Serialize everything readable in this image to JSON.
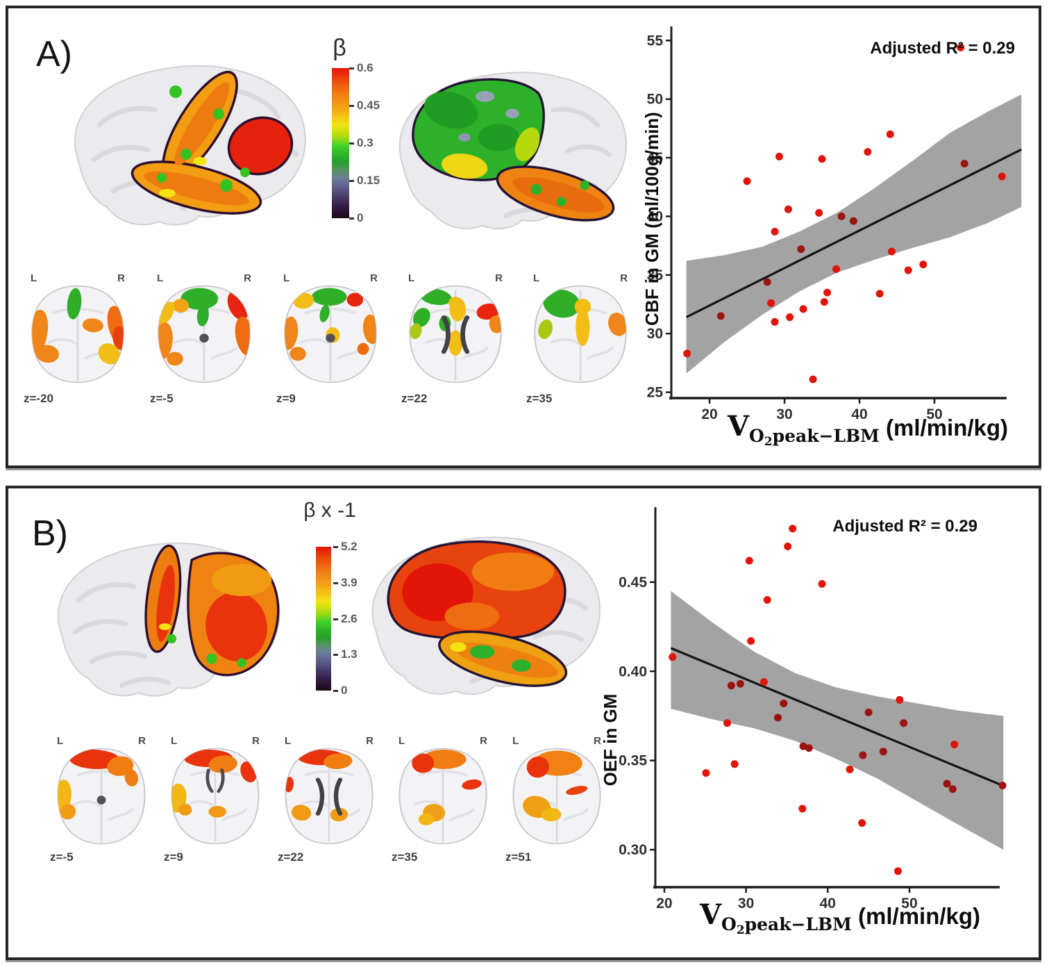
{
  "panels": {
    "a": {
      "label": "A)",
      "colorbar": {
        "title": "β",
        "tick_labels": [
          "0.6",
          "0.45",
          "0.3",
          "0.15",
          "0"
        ]
      },
      "slices": [
        {
          "z": "z=-20",
          "l": "L",
          "r": "R",
          "ventricle": "none",
          "patches": [
            [
              47,
              22,
              6,
              16,
              5,
              "#2fae27"
            ],
            [
              15,
              52,
              9,
              24,
              8,
              "#f08619"
            ],
            [
              84,
              44,
              8,
              20,
              -10,
              "#ef6a10"
            ],
            [
              86,
              57,
              6,
              12,
              -5,
              "#e8400d"
            ],
            [
              77,
              73,
              9,
              11,
              -25,
              "#f2bd16"
            ],
            [
              63,
              44,
              9,
              7,
              10,
              "#f08619"
            ],
            [
              24,
              73,
              10,
              9,
              15,
              "#f08619"
            ]
          ]
        },
        {
          "z": "z=-5",
          "l": "L",
          "r": "R",
          "ventricle": "dot",
          "patches": [
            [
              46,
              17,
              16,
              11,
              0,
              "#2fae27"
            ],
            [
              30,
              24,
              7,
              7,
              0,
              "#f2a315"
            ],
            [
              17,
              32,
              6,
              13,
              25,
              "#f2bd16"
            ],
            [
              79,
              24,
              8,
              15,
              -18,
              "#e8250f"
            ],
            [
              15,
              60,
              8,
              19,
              5,
              "#f08619"
            ],
            [
              85,
              55,
              8,
              20,
              -8,
              "#ef6a10"
            ],
            [
              49,
              34,
              5,
              11,
              5,
              "#2fae27"
            ],
            [
              25,
              78,
              7,
              7,
              0,
              "#f08619"
            ]
          ]
        },
        {
          "z": "z=9",
          "l": "L",
          "r": "R",
          "ventricle": "dot",
          "patches": [
            [
              49,
              15,
              15,
              9,
              0,
              "#2fae27"
            ],
            [
              27,
              19,
              9,
              8,
              -15,
              "#f2bd16"
            ],
            [
              71,
              18,
              7,
              7,
              15,
              "#e8250f"
            ],
            [
              15,
              52,
              7,
              17,
              5,
              "#f08619"
            ],
            [
              85,
              48,
              7,
              15,
              -5,
              "#f08619"
            ],
            [
              52,
              54,
              6,
              8,
              0,
              "#f2bd16"
            ],
            [
              45,
              32,
              4,
              9,
              10,
              "#2fae27"
            ],
            [
              22,
              73,
              7,
              7,
              0,
              "#f08619"
            ],
            [
              78,
              68,
              5,
              6,
              0,
              "#ef6a10"
            ]
          ]
        },
        {
          "z": "z=22",
          "l": "L",
          "r": "R",
          "ventricle": "x",
          "patches": [
            [
              33,
              15,
              14,
              8,
              12,
              "#2fae27"
            ],
            [
              52,
              28,
              7,
              12,
              0,
              "#f2bd16"
            ],
            [
              78,
              30,
              10,
              8,
              -18,
              "#e8250f"
            ],
            [
              85,
              43,
              6,
              9,
              -5,
              "#f08619"
            ],
            [
              21,
              36,
              7,
              10,
              18,
              "#2fae27"
            ],
            [
              16,
              50,
              5,
              8,
              8,
              "#a9c913"
            ],
            [
              50,
              62,
              6,
              13,
              0,
              "#f2bd16"
            ],
            [
              41,
              42,
              5,
              8,
              0,
              "#2fae27"
            ],
            [
              50,
              21,
              6,
              6,
              0,
              "#f2bd16"
            ]
          ]
        },
        {
          "z": "z=35",
          "l": "L",
          "r": "R",
          "ventricle": "none",
          "patches": [
            [
              34,
              22,
              16,
              14,
              22,
              "#2fae27"
            ],
            [
              20,
              48,
              6,
              10,
              10,
              "#a9c913"
            ],
            [
              82,
              43,
              8,
              12,
              -10,
              "#f08619"
            ],
            [
              52,
              46,
              6,
              19,
              0,
              "#f2bd16"
            ],
            [
              52,
              25,
              7,
              8,
              0,
              "#f2bd16"
            ]
          ]
        }
      ]
    },
    "b": {
      "label": "B)",
      "colorbar": {
        "title": "β x -1",
        "tick_labels": [
          "5.2",
          "3.9",
          "2.6",
          "1.3",
          "0"
        ]
      },
      "slices": [
        {
          "z": "z=-5",
          "l": "L",
          "r": "R",
          "ventricle": "dot",
          "patches": [
            [
              44,
              15,
              23,
              10,
              3,
              "#e8330c"
            ],
            [
              67,
              22,
              12,
              10,
              -15,
              "#f07d12"
            ],
            [
              77,
              34,
              6,
              9,
              -8,
              "#f07d12"
            ],
            [
              15,
              53,
              8,
              17,
              5,
              "#f2b715"
            ],
            [
              20,
              69,
              7,
              8,
              10,
              "#f09a16"
            ]
          ]
        },
        {
          "z": "z=9",
          "l": "L",
          "r": "R",
          "ventricle": "horns",
          "patches": [
            [
              44,
              14,
              22,
              9,
              0,
              "#e8330c"
            ],
            [
              57,
              20,
              13,
              9,
              -8,
              "#f07d12"
            ],
            [
              80,
              28,
              7,
              11,
              -15,
              "#e8330c"
            ],
            [
              16,
              55,
              8,
              15,
              5,
              "#f2b715"
            ],
            [
              52,
              69,
              8,
              6,
              0,
              "#f09a16"
            ],
            [
              23,
              67,
              6,
              6,
              0,
              "#f09a16"
            ]
          ]
        },
        {
          "z": "z=22",
          "l": "L",
          "r": "R",
          "ventricle": "x",
          "patches": [
            [
              43,
              13,
              21,
              8,
              0,
              "#e8330c"
            ],
            [
              58,
              17,
              13,
              8,
              -5,
              "#f07d12"
            ],
            [
              25,
              70,
              9,
              8,
              20,
              "#f09a16"
            ],
            [
              59,
              72,
              8,
              7,
              -10,
              "#f09a16"
            ],
            [
              14,
              41,
              4,
              8,
              5,
              "#e8330c"
            ]
          ]
        },
        {
          "z": "z=35",
          "l": "L",
          "r": "R",
          "ventricle": "none",
          "patches": [
            [
              51,
              15,
              20,
              10,
              0,
              "#f07d12"
            ],
            [
              32,
              19,
              10,
              10,
              20,
              "#e8330c"
            ],
            [
              76,
              41,
              9,
              5,
              -12,
              "#e8330c"
            ],
            [
              42,
              70,
              10,
              9,
              10,
              "#f0a016"
            ],
            [
              35,
              77,
              7,
              6,
              0,
              "#f2b715"
            ]
          ]
        },
        {
          "z": "z=51",
          "l": "L",
          "r": "R",
          "ventricle": "none",
          "patches": [
            [
              51,
              19,
              22,
              13,
              0,
              "#f08112"
            ],
            [
              33,
              23,
              10,
              11,
              10,
              "#e8330c"
            ],
            [
              68,
              47,
              10,
              4,
              -15,
              "#e8420d"
            ],
            [
              32,
              64,
              13,
              11,
              25,
              "#f0a016"
            ],
            [
              45,
              72,
              9,
              7,
              0,
              "#f2b715"
            ]
          ]
        }
      ]
    }
  },
  "chart_data": [
    {
      "id": "cbf",
      "type": "scatter",
      "annotation": "Adjusted R² = 0.29",
      "ylabel": "CBF in GM (ml/100g/min)",
      "xlabel": {
        "main": "V",
        "sub_o": "O",
        "sub_2": "2",
        "sub_rest": "peak−LBM",
        "units": " (ml/min/kg)"
      },
      "x_tick_vals": [
        20,
        30,
        40,
        50
      ],
      "x_tick_labels": [
        "20",
        "30",
        "40",
        "50"
      ],
      "y_tick_vals": [
        25,
        30,
        35,
        40,
        45,
        50,
        55
      ],
      "y_tick_labels": [
        "25",
        "30",
        "35",
        "40",
        "45",
        "50",
        "55"
      ],
      "xlim": [
        14.9,
        63.8
      ],
      "ylim": [
        24.5,
        56.2
      ],
      "grid": false,
      "regression": {
        "x": [
          16.9,
          61.6
        ],
        "y": [
          31.4,
          45.7
        ]
      },
      "band": {
        "x": [
          16.9,
          22,
          27,
          32,
          37,
          42,
          47,
          52,
          57,
          61.6
        ],
        "upper": [
          36.2,
          36.7,
          37.4,
          38.7,
          40.3,
          42.4,
          44.7,
          47.1,
          48.9,
          50.4
        ],
        "lower": [
          26.6,
          29.3,
          31.6,
          33.6,
          35.2,
          36.3,
          37.3,
          38.2,
          39.4,
          40.8
        ]
      },
      "points": [
        [
          17,
          28.3,
          0
        ],
        [
          21.5,
          31.5,
          1
        ],
        [
          25,
          43,
          0
        ],
        [
          27.7,
          34.4,
          1
        ],
        [
          28.2,
          32.6,
          0
        ],
        [
          28.7,
          38.7,
          0
        ],
        [
          28.7,
          31,
          0
        ],
        [
          29.3,
          45.1,
          0
        ],
        [
          30.5,
          40.6,
          0
        ],
        [
          30.7,
          31.4,
          0
        ],
        [
          32.2,
          37.2,
          1
        ],
        [
          32.5,
          32.1,
          0
        ],
        [
          33.8,
          26.1,
          0
        ],
        [
          34.6,
          40.3,
          0
        ],
        [
          35,
          44.9,
          0
        ],
        [
          35.3,
          32.7,
          0
        ],
        [
          35.7,
          33.5,
          0
        ],
        [
          36.9,
          35.5,
          0
        ],
        [
          37.6,
          40,
          1
        ],
        [
          39.2,
          39.6,
          1
        ],
        [
          41.1,
          45.5,
          0
        ],
        [
          42.7,
          33.4,
          0
        ],
        [
          44.1,
          47,
          0
        ],
        [
          44.3,
          37,
          0
        ],
        [
          46.5,
          35.4,
          0
        ],
        [
          48.5,
          35.9,
          0
        ],
        [
          53.5,
          54.4,
          0
        ],
        [
          54,
          44.5,
          1
        ],
        [
          59,
          43.4,
          0
        ]
      ],
      "colors": {
        "point": "#e01408",
        "point_dark": "#9a1410",
        "band": "#a3a3a3",
        "line": "#141414"
      }
    },
    {
      "id": "oef",
      "type": "scatter",
      "annotation": "Adjusted R² = 0.29",
      "ylabel": "OEF in GM",
      "xlabel": {
        "main": "V",
        "sub_o": "O",
        "sub_2": "2",
        "sub_rest": "peak−LBM",
        "units": " (ml/min/kg)"
      },
      "x_tick_vals": [
        20,
        30,
        40,
        50
      ],
      "x_tick_labels": [
        "20",
        "30",
        "40",
        "50"
      ],
      "y_tick_vals": [
        0.3,
        0.35,
        0.4,
        0.45
      ],
      "y_tick_labels": [
        "0.30",
        "0.35",
        "0.40",
        "0.45"
      ],
      "xlim": [
        18.9,
        65.3
      ],
      "ylim": [
        0.279,
        0.492
      ],
      "grid": false,
      "regression": {
        "x": [
          20.8,
          61.4
        ],
        "y": [
          0.413,
          0.336
        ]
      },
      "band": {
        "x": [
          20.8,
          26,
          31,
          36,
          41,
          46,
          51,
          56,
          61.5
        ],
        "upper": [
          0.445,
          0.427,
          0.411,
          0.399,
          0.391,
          0.386,
          0.382,
          0.378,
          0.375
        ],
        "lower": [
          0.379,
          0.373,
          0.368,
          0.361,
          0.351,
          0.34,
          0.327,
          0.314,
          0.3
        ]
      },
      "points": [
        [
          21,
          0.408,
          0
        ],
        [
          25.1,
          0.343,
          0
        ],
        [
          27.7,
          0.371,
          0
        ],
        [
          28.2,
          0.392,
          1
        ],
        [
          28.6,
          0.348,
          0
        ],
        [
          29.3,
          0.393,
          1
        ],
        [
          30.4,
          0.462,
          0
        ],
        [
          30.6,
          0.417,
          0
        ],
        [
          32.2,
          0.394,
          0
        ],
        [
          32.6,
          0.44,
          0
        ],
        [
          33.9,
          0.374,
          1
        ],
        [
          34.6,
          0.382,
          1
        ],
        [
          35.1,
          0.47,
          0
        ],
        [
          35.7,
          0.48,
          0
        ],
        [
          36.9,
          0.323,
          0
        ],
        [
          37,
          0.358,
          1
        ],
        [
          37.7,
          0.357,
          1
        ],
        [
          39.3,
          0.449,
          0
        ],
        [
          42.7,
          0.345,
          0
        ],
        [
          44.2,
          0.315,
          0
        ],
        [
          44.3,
          0.353,
          1
        ],
        [
          45,
          0.377,
          1
        ],
        [
          46.8,
          0.355,
          1
        ],
        [
          48.6,
          0.288,
          0
        ],
        [
          48.8,
          0.384,
          0
        ],
        [
          49.3,
          0.371,
          1
        ],
        [
          54.6,
          0.337,
          1
        ],
        [
          55.3,
          0.334,
          1
        ],
        [
          55.5,
          0.359,
          0
        ],
        [
          61.4,
          0.336,
          1
        ]
      ],
      "colors": {
        "point": "#e01408",
        "point_dark": "#9a1410",
        "band": "#a3a3a3",
        "line": "#141414"
      }
    }
  ]
}
